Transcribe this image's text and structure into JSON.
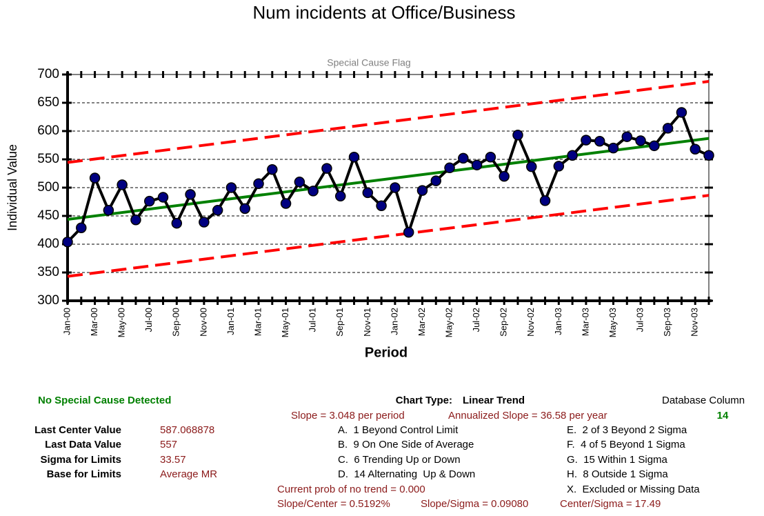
{
  "chart_data": {
    "type": "line",
    "title": "Num incidents at Office/Business",
    "subtitle": "Special Cause Flag",
    "x_label": "Period",
    "y_label": "Individual Value",
    "categories": [
      "Jan-00",
      null,
      "Mar-00",
      null,
      "May-00",
      null,
      "Jul-00",
      null,
      "Sep-00",
      null,
      "Nov-00",
      null,
      "Jan-01",
      null,
      "Mar-01",
      null,
      "May-01",
      null,
      "Jul-01",
      null,
      "Sep-01",
      null,
      "Nov-01",
      null,
      "Jan-02",
      null,
      "Mar-02",
      null,
      "May-02",
      null,
      "Jul-02",
      null,
      "Sep-02",
      null,
      "Nov-02",
      null,
      "Jan-03",
      null,
      "Mar-03",
      null,
      "May-03",
      null,
      "Jul-03",
      null,
      "Sep-03",
      null,
      "Nov-03",
      null
    ],
    "series": [
      {
        "color": "#000000",
        "marker_color": "#000080",
        "values": [
          404,
          429,
          517,
          460,
          505,
          443,
          476,
          483,
          437,
          488,
          439,
          460,
          500,
          463,
          507,
          532,
          472,
          510,
          494,
          534,
          485,
          554,
          491,
          468,
          500,
          421,
          495,
          512,
          535,
          552,
          540,
          554,
          520,
          593,
          537,
          477,
          538,
          557,
          584,
          582,
          570,
          590,
          583,
          574,
          605,
          633,
          568,
          557
        ]
      }
    ],
    "trend": {
      "start": 443.81,
      "end": 587.07,
      "color": "#008000"
    },
    "upper_limit": {
      "start": 544.52,
      "end": 687.78,
      "color": "#ff0000"
    },
    "lower_limit": {
      "start": 343.1,
      "end": 486.36,
      "color": "#ff0000"
    },
    "ylim": [
      300,
      700
    ],
    "yticks": [
      300,
      350,
      400,
      450,
      500,
      550,
      600,
      650,
      700
    ],
    "grid": true
  },
  "panel": {
    "status": "No Special Cause Detected",
    "chart_type_label": "Chart Type:",
    "chart_type": "Linear Trend",
    "database_column_label": "Database Column",
    "database_column": "14",
    "slope": "Slope = 3.048 per period",
    "annualized_slope": "Annualized Slope = 36.58 per year",
    "stats": [
      {
        "label": "Last Center Value",
        "value": "587.068878"
      },
      {
        "label": "Last Data Value",
        "value": "557"
      },
      {
        "label": "Sigma for Limits",
        "value": "33.57"
      },
      {
        "label": "Base for Limits",
        "value": "Average MR"
      }
    ],
    "rules_left": [
      "A.  1 Beyond Control Limit",
      "B.  9 On One Side of Average",
      "C.  6 Trending Up or Down",
      "D.  14 Alternating  Up & Down"
    ],
    "rules_right": [
      "E.  2 of 3 Beyond 2 Sigma",
      "F.  4 of 5 Beyond 1 Sigma",
      "G.  15 Within 1 Sigma",
      "H.  8 Outside 1 Sigma",
      "X.  Excluded or Missing Data"
    ],
    "prob": "Current prob of no trend = 0.000",
    "slope_center": "Slope/Center = 0.5192%",
    "slope_sigma": "Slope/Sigma = 0.09080",
    "center_sigma": "Center/Sigma = 17.49"
  }
}
